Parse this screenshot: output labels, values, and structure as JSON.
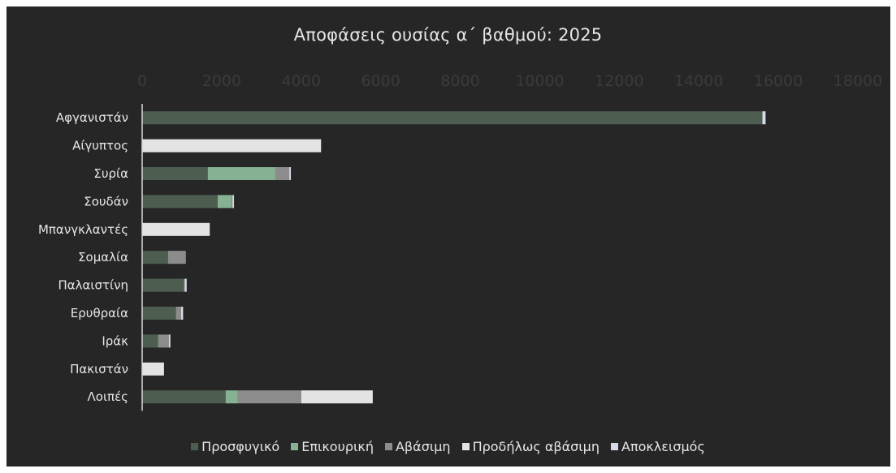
{
  "chart_data": {
    "type": "bar",
    "orientation": "horizontal",
    "stacked": true,
    "title": "Αποφάσεις ουσίας α΄ βαθμού: 2025",
    "xlabel": "",
    "ylabel": "",
    "xlim": [
      0,
      18000
    ],
    "xticks": [
      "0",
      "2000",
      "4000",
      "6000",
      "8000",
      "10000",
      "12000",
      "14000",
      "16000",
      "18000"
    ],
    "grid": false,
    "legend_position": "bottom",
    "categories": [
      "Αφγανιστάν",
      "Αίγυπτος",
      "Συρία",
      "Σουδάν",
      "Μπανγκλαντές",
      "Σομαλία",
      "Παλαιστίνη",
      "Ερυθραία",
      "Ιράκ",
      "Πακιστάν",
      "Λοιπές"
    ],
    "series": [
      {
        "name": "Προσφυγικό",
        "color": "#4d5e51",
        "values": [
          15600,
          0,
          1650,
          1900,
          0,
          650,
          1050,
          850,
          400,
          0,
          2100
        ]
      },
      {
        "name": "Επικουρική",
        "color": "#86b293",
        "values": [
          0,
          0,
          1700,
          350,
          0,
          0,
          0,
          0,
          0,
          0,
          300
        ]
      },
      {
        "name": "Αβάσιμη",
        "color": "#8c8c8c",
        "values": [
          0,
          0,
          350,
          20,
          0,
          450,
          20,
          130,
          270,
          0,
          1600
        ]
      },
      {
        "name": "Προδήλως αβάσιμη",
        "color": "#e3e3e3",
        "values": [
          0,
          4500,
          0,
          0,
          1700,
          0,
          0,
          0,
          0,
          550,
          1800
        ]
      },
      {
        "name": "Αποκλεισμός",
        "color": "#d4dbe6",
        "values": [
          80,
          0,
          40,
          40,
          0,
          0,
          50,
          50,
          40,
          0,
          0
        ]
      }
    ]
  }
}
